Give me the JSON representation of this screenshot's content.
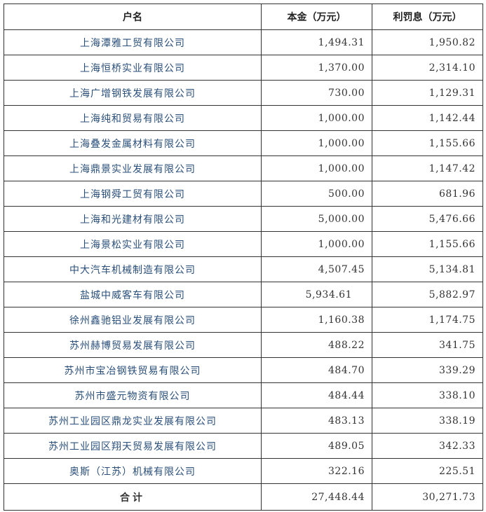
{
  "table": {
    "header": [
      "户名",
      "本金（万元）",
      "利罚息（万元）"
    ],
    "rows": [
      [
        "上海潭雅工贸有限公司",
        "1,494.31",
        "1,950.82"
      ],
      [
        "上海恒桥实业有限公司",
        "1,370.00",
        "2,314.10"
      ],
      [
        "上海广增钢铁发展有限公司",
        "730.00",
        "1,129.31"
      ],
      [
        "上海纯和贸易有限公司",
        "1,000.00",
        "1,142.44"
      ],
      [
        "上海叠发金属材料有限公司",
        "1,000.00",
        "1,155.66"
      ],
      [
        "上海鼎景实业发展有限公司",
        "1,000.00",
        "1,147.42"
      ],
      [
        "上海钢舜工贸有限公司",
        "500.00",
        "681.96"
      ],
      [
        "上海和光建材有限公司",
        "5,000.00",
        "5,476.66"
      ],
      [
        "上海景松实业有限公司",
        "1,000.00",
        "1,155.66"
      ],
      [
        "中大汽车机械制造有限公司",
        "4,507.45",
        "5,134.81"
      ],
      [
        "盐城中威客车有限公司",
        "5,934.61",
        "5,882.97"
      ],
      [
        "徐州鑫驰铝业发展有限公司",
        "1,160.38",
        "1,174.75"
      ],
      [
        "苏州赫博贸易发展有限公司",
        "488.22",
        "341.75"
      ],
      [
        "苏州市宝冶钢铁贸易有限公司",
        "484.70",
        "339.29"
      ],
      [
        "苏州市盛元物资有限公司",
        "484.44",
        "338.10"
      ],
      [
        "苏州工业园区鼎龙实业发展有限公司",
        "483.13",
        "338.19"
      ],
      [
        "苏州工业园区翔天贸易发展有限公司",
        "489.05",
        "342.33"
      ],
      [
        "奥斯（江苏）机械有限公司",
        "322.16",
        "225.51"
      ]
    ],
    "total": [
      "合计",
      "27,448.44",
      "30,271.73"
    ]
  }
}
